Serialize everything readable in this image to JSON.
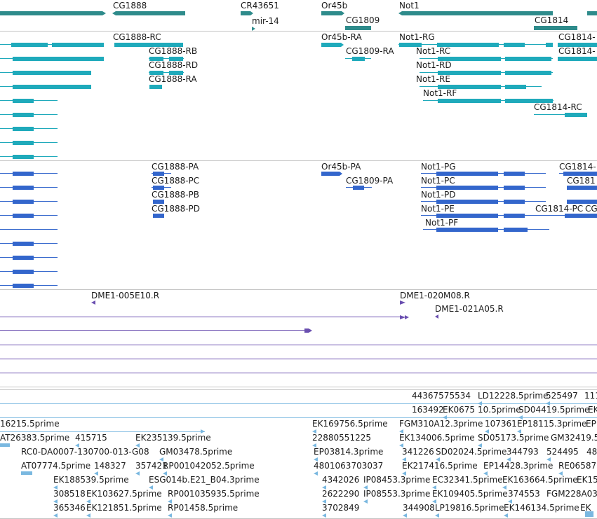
{
  "view": {
    "title": "",
    "colors": {
      "gene": "#2e8b8b",
      "rna": "#1faabb",
      "protein": "#3366cc",
      "clone": "#6a4fb0",
      "est": "#7ab8e0",
      "divider": "#c4c4c4"
    }
  },
  "tracks": {
    "genes": {
      "items": [
        {
          "label": "CG1888"
        },
        {
          "label": "CR43651"
        },
        {
          "label": "mir-14"
        },
        {
          "label": "Or45b"
        },
        {
          "label": "CG1809"
        },
        {
          "label": "Not1"
        },
        {
          "label": "CG1814"
        }
      ]
    },
    "transcripts": {
      "items": [
        {
          "label": "CG1888-RC"
        },
        {
          "label": "CG1888-RB"
        },
        {
          "label": "CG1888-RD"
        },
        {
          "label": "CG1888-RA"
        },
        {
          "label": "Or45b-RA"
        },
        {
          "label": "CG1809-RA"
        },
        {
          "label": "Not1-RG"
        },
        {
          "label": "Not1-RC"
        },
        {
          "label": "Not1-RD"
        },
        {
          "label": "Not1-RE"
        },
        {
          "label": "Not1-RF"
        },
        {
          "label": "CG1814-"
        },
        {
          "label": "CG1814-"
        },
        {
          "label": "CG1814-RC"
        }
      ]
    },
    "proteins": {
      "items": [
        {
          "label": "CG1888-PA"
        },
        {
          "label": "CG1888-PC"
        },
        {
          "label": "CG1888-PB"
        },
        {
          "label": "CG1888-PD"
        },
        {
          "label": "Or45b-PA"
        },
        {
          "label": "CG1809-PA"
        },
        {
          "label": "Not1-PG"
        },
        {
          "label": "Not1-PC"
        },
        {
          "label": "Not1-PD"
        },
        {
          "label": "Not1-PE"
        },
        {
          "label": "Not1-PF"
        },
        {
          "label": "CG1814-"
        },
        {
          "label": "CG181"
        },
        {
          "label": "CG1814-PC"
        },
        {
          "label": "CG"
        }
      ]
    },
    "clones": {
      "items": [
        {
          "label": "DME1-005E10.R"
        },
        {
          "label": "DME1-020M08.R"
        },
        {
          "label": "DME1-021A05.R"
        }
      ]
    },
    "ests": {
      "items": [
        {
          "label": "44367575534"
        },
        {
          "label": "LD12228.5prime"
        },
        {
          "label": "525497"
        },
        {
          "label": "111"
        },
        {
          "label": "163492"
        },
        {
          "label": "EK0675"
        },
        {
          "label": "10.5prime"
        },
        {
          "label": "SD04419.5prime"
        },
        {
          "label": "EK"
        },
        {
          "label": "16215.5prime"
        },
        {
          "label": "EK169756.5prime"
        },
        {
          "label": "FGM310A12.3prime"
        },
        {
          "label": "107361"
        },
        {
          "label": "EP18115.3prime"
        },
        {
          "label": "EP"
        },
        {
          "label": "AT26383.5prime"
        },
        {
          "label": "415715"
        },
        {
          "label": "EK235139.5prime"
        },
        {
          "label": "22880551225"
        },
        {
          "label": "EK134006.5prime"
        },
        {
          "label": "SD05173.5prime"
        },
        {
          "label": "GM32419.5"
        },
        {
          "label": "RC0-DA0007-130700-013-G08"
        },
        {
          "label": "GM03478.5prime"
        },
        {
          "label": "EP03814.3prime"
        },
        {
          "label": "341226"
        },
        {
          "label": "SD02024.5prime"
        },
        {
          "label": "344793"
        },
        {
          "label": "524495"
        },
        {
          "label": "48"
        },
        {
          "label": "AT07774.5prime"
        },
        {
          "label": "148327"
        },
        {
          "label": "357421"
        },
        {
          "label": "RP001042052.5prime"
        },
        {
          "label": "4801063703037"
        },
        {
          "label": "EK217416.5prime"
        },
        {
          "label": "EP14428.3prime"
        },
        {
          "label": "RE06587"
        },
        {
          "label": "EK188539.5prime"
        },
        {
          "label": "ESG014b.E21_B04.3prime"
        },
        {
          "label": "4342026"
        },
        {
          "label": "IP08453.3prime"
        },
        {
          "label": "EC32341.5prime"
        },
        {
          "label": "EK163664.5prime"
        },
        {
          "label": "EK15"
        },
        {
          "label": "308518"
        },
        {
          "label": "EK103627.5prime"
        },
        {
          "label": "RP001035935.5prime"
        },
        {
          "label": "2622290"
        },
        {
          "label": "IP08553.3prime"
        },
        {
          "label": "EK109405.5prime"
        },
        {
          "label": "374553"
        },
        {
          "label": "FGM228A03"
        },
        {
          "label": "365346"
        },
        {
          "label": "EK121851.5prime"
        },
        {
          "label": "RP01458.5prime"
        },
        {
          "label": "3702849"
        },
        {
          "label": "344908"
        },
        {
          "label": "LP19816.5prime"
        },
        {
          "label": "EK146134.5prime"
        },
        {
          "label": "EK"
        }
      ]
    }
  }
}
